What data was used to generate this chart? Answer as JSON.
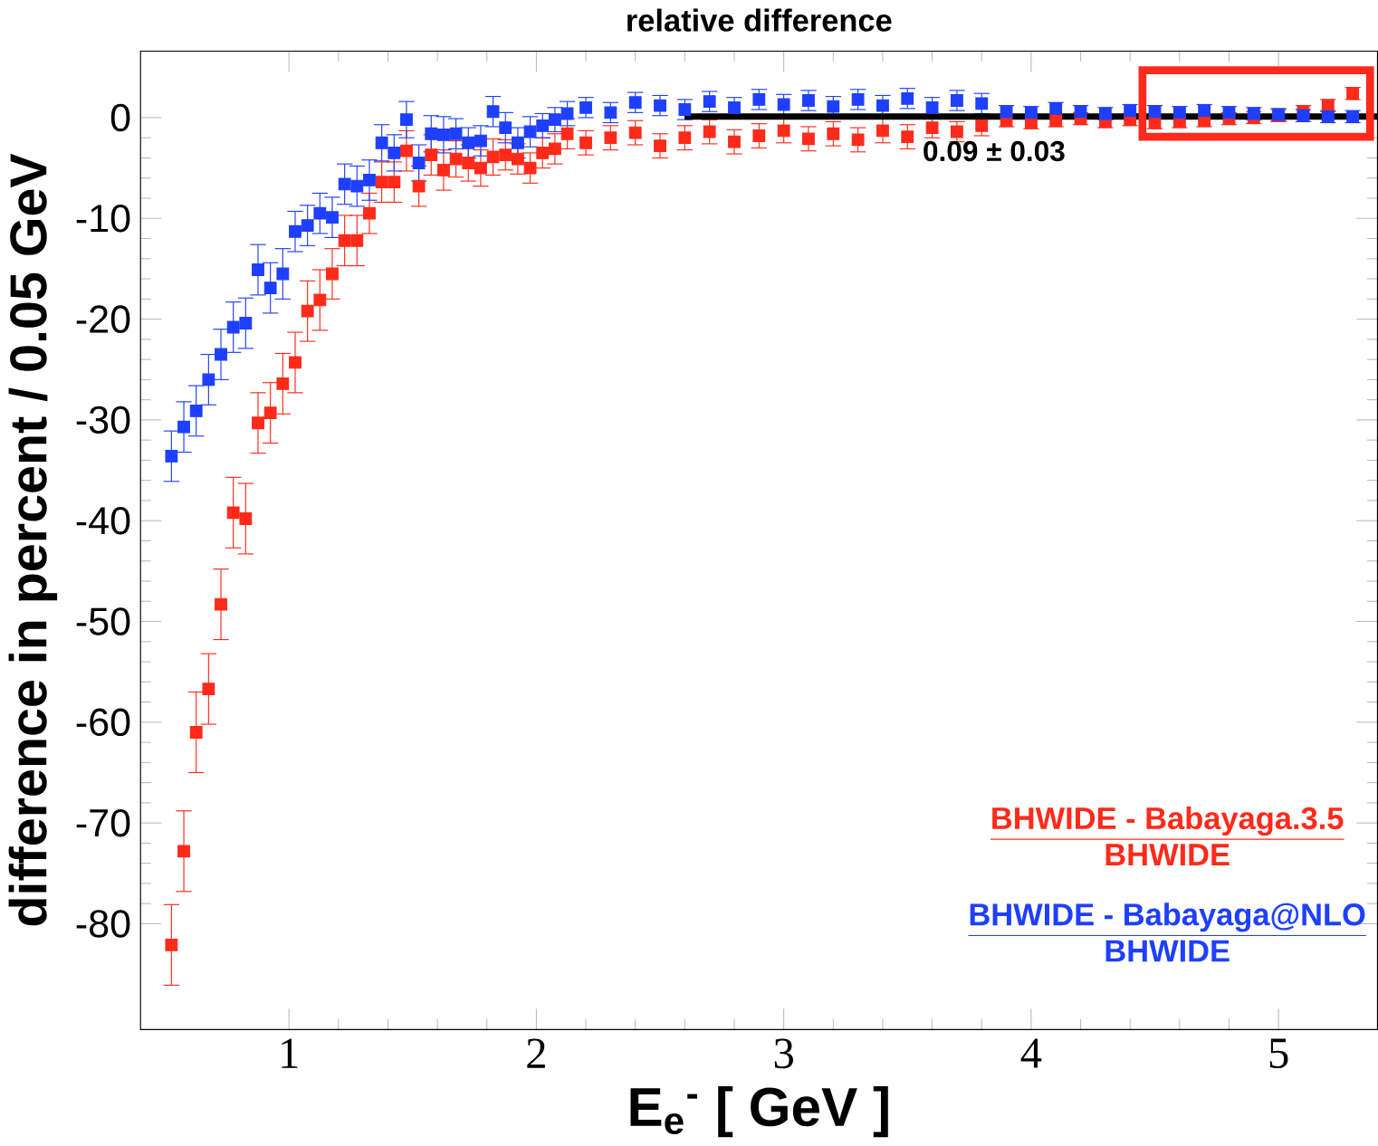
{
  "chart_data": {
    "type": "scatter",
    "title": "relative difference",
    "xlabel": "E$_{e}$$^{-}$ [ GeV ]",
    "ylabel": "difference in percent / 0.05 GeV",
    "xlim": [
      0.4,
      5.4
    ],
    "xticks": [
      1,
      2,
      3,
      4,
      5
    ],
    "ylim": [
      -90.5,
      6.6
    ],
    "yticks": [
      -80,
      -70,
      -60,
      -50,
      -40,
      -30,
      -20,
      -10,
      0
    ],
    "marker": "square",
    "legend": "bottom right",
    "grid": false,
    "annotations": [
      "0.09 ± 0.03",
      "BHWIDE",
      "BHWIDE"
    ],
    "series": [
      {
        "name": "BHWIDE - Babayaga.3.5",
        "color": "#ff2a1a",
        "x": [
          0.525,
          0.575,
          0.625,
          0.675,
          0.725,
          0.775,
          0.825,
          0.875,
          0.925,
          0.975,
          1.025,
          1.075,
          1.125,
          1.175,
          1.225,
          1.275,
          1.325,
          1.375,
          1.425,
          1.475,
          1.525,
          1.575,
          1.625,
          1.675,
          1.725,
          1.775,
          1.825,
          1.875,
          1.925,
          1.975,
          2.025,
          2.075,
          2.125,
          2.2,
          2.3,
          2.4,
          2.5,
          2.6,
          2.7,
          2.8,
          2.9,
          3.0,
          3.1,
          3.2,
          3.3,
          3.4,
          3.5,
          3.6,
          3.7,
          3.8,
          3.9,
          4.0,
          4.1,
          4.2,
          4.3,
          4.4,
          4.5,
          4.6,
          4.7,
          4.8,
          4.9,
          5.0,
          5.1,
          5.2,
          5.3
        ],
        "values": [
          -82.1,
          -72.8,
          -61,
          -56.7,
          -48.3,
          -39.2,
          -39.8,
          -30.3,
          -29.3,
          -26.4,
          -24.3,
          -19.2,
          -18.1,
          -15.5,
          -12.2,
          -12.2,
          -9.5,
          -6.4,
          -6.4,
          -3.3,
          -6.8,
          -3.7,
          -5.2,
          -4.1,
          -4.5,
          -5,
          -3.9,
          -3.7,
          -4.1,
          -5,
          -3.5,
          -3.1,
          -1.6,
          -2.5,
          -2.0,
          -1.5,
          -2.8,
          -2.0,
          -1.4,
          -2.4,
          -1.8,
          -1.3,
          -2.1,
          -1.6,
          -2.2,
          -1.3,
          -1.9,
          -1.0,
          -1.4,
          -0.8,
          -0.3,
          -0.5,
          -0.3,
          -0.1,
          -0.4,
          -0.2,
          -0.5,
          -0.4,
          -0.3,
          -0.1,
          0.0,
          0.2,
          0.6,
          1.2,
          2.4
        ],
        "errors": [
          4,
          4,
          4,
          3.5,
          3.5,
          3.5,
          3.5,
          3,
          3,
          3,
          3,
          3,
          3,
          2.5,
          2.5,
          2.5,
          2,
          2,
          2,
          2,
          2,
          2,
          2,
          1.8,
          1.8,
          1.8,
          1.8,
          1.5,
          1.5,
          1.5,
          1.5,
          1.5,
          1.5,
          1.2,
          1.2,
          1.2,
          1.2,
          1.2,
          1.2,
          1.2,
          1.2,
          1.2,
          1.2,
          1.2,
          1.2,
          1.2,
          1.2,
          1.0,
          1.0,
          1.0,
          0.6,
          0.6,
          0.6,
          0.6,
          0.6,
          0.6,
          0.6,
          0.6,
          0.6,
          0.6,
          0.6,
          0.6,
          0.6,
          0.6,
          0.6
        ]
      },
      {
        "name": "BHWIDE - Babayaga@NLO",
        "color": "#1f3fff",
        "x": [
          0.525,
          0.575,
          0.625,
          0.675,
          0.725,
          0.775,
          0.825,
          0.875,
          0.925,
          0.975,
          1.025,
          1.075,
          1.125,
          1.175,
          1.225,
          1.275,
          1.325,
          1.375,
          1.425,
          1.475,
          1.525,
          1.575,
          1.625,
          1.675,
          1.725,
          1.775,
          1.825,
          1.875,
          1.925,
          1.975,
          2.025,
          2.075,
          2.125,
          2.2,
          2.3,
          2.4,
          2.5,
          2.6,
          2.7,
          2.8,
          2.9,
          3.0,
          3.1,
          3.2,
          3.3,
          3.4,
          3.5,
          3.6,
          3.7,
          3.8,
          3.9,
          4.0,
          4.1,
          4.2,
          4.3,
          4.4,
          4.5,
          4.6,
          4.7,
          4.8,
          4.9,
          5.0,
          5.1,
          5.2,
          5.3
        ],
        "values": [
          -33.6,
          -30.7,
          -29.1,
          -26,
          -23.5,
          -20.8,
          -20.4,
          -15.1,
          -16.9,
          -15.5,
          -11.3,
          -10.7,
          -9.5,
          -9.9,
          -6.6,
          -6.8,
          -6.2,
          -2.5,
          -3.5,
          -0.2,
          -4.5,
          -1.6,
          -1.7,
          -1.6,
          -2.5,
          -2.3,
          0.6,
          -1.0,
          -2.5,
          -1.4,
          -0.8,
          -0.2,
          0.4,
          1.0,
          0.5,
          1.5,
          1.2,
          0.8,
          1.6,
          1.0,
          1.8,
          1.3,
          1.7,
          1.1,
          1.8,
          1.2,
          1.9,
          1.0,
          1.7,
          1.4,
          0.6,
          0.5,
          0.9,
          0.6,
          0.4,
          0.7,
          0.6,
          0.5,
          0.7,
          0.5,
          0.4,
          0.3,
          0.2,
          0.1,
          0.1
        ],
        "errors": [
          2.5,
          2.5,
          2.5,
          2.5,
          2.5,
          2.5,
          2.5,
          2.5,
          2.5,
          2.5,
          2,
          2,
          2,
          2,
          2,
          2,
          2,
          1.8,
          1.8,
          1.8,
          1.8,
          1.8,
          1.8,
          1.5,
          1.5,
          1.5,
          1.5,
          1.5,
          1.5,
          1.5,
          1.2,
          1.2,
          1.2,
          1.0,
          1.0,
          1.0,
          1.0,
          1.0,
          1.0,
          1.0,
          1.0,
          1.0,
          1.0,
          1.0,
          1.0,
          1.0,
          1.0,
          1.0,
          1.0,
          1.0,
          0.6,
          0.6,
          0.6,
          0.6,
          0.6,
          0.6,
          0.6,
          0.6,
          0.6,
          0.6,
          0.6,
          0.6,
          0.6,
          0.6,
          0.6
        ]
      },
      {
        "type": "line",
        "marker": "none",
        "color": "#000000",
        "x": [
          2.6,
          5.4
        ],
        "values": [
          0.09,
          0.09
        ]
      }
    ]
  }
}
